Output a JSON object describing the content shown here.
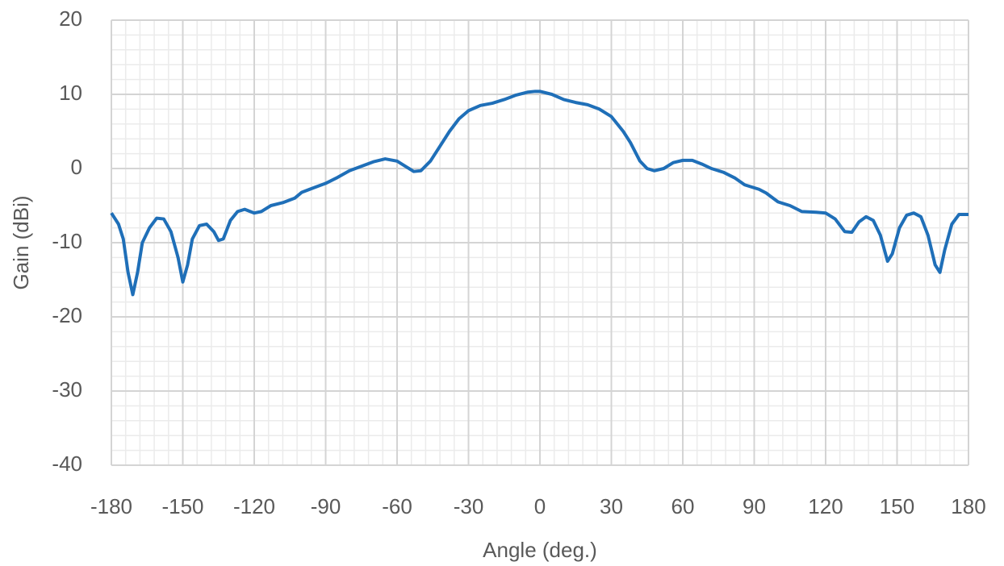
{
  "chart_data": {
    "type": "line",
    "x_label": "Angle (deg.)",
    "y_label": "Gain (dBi)",
    "xlim": [
      -180,
      180
    ],
    "xticks": [
      -180,
      -150,
      -120,
      -90,
      -60,
      -30,
      0,
      30,
      60,
      90,
      120,
      150,
      180
    ],
    "ylim": [
      -40,
      20
    ],
    "yticks": [
      -40,
      -30,
      -20,
      -10,
      0,
      10,
      20
    ],
    "grid": true,
    "minor_grid": true,
    "series": [
      {
        "name": "Gain",
        "color": "#1f6fb8",
        "x": [
          -180,
          -177,
          -175,
          -173,
          -171,
          -169,
          -167,
          -164,
          -161,
          -158,
          -155,
          -152,
          -150,
          -148,
          -146,
          -143,
          -140,
          -137,
          -135,
          -133,
          -130,
          -127,
          -124,
          -120,
          -117,
          -113,
          -108,
          -103,
          -100,
          -95,
          -90,
          -85,
          -80,
          -75,
          -70,
          -65,
          -60,
          -56,
          -53,
          -50,
          -46,
          -42,
          -38,
          -34,
          -30,
          -25,
          -20,
          -15,
          -10,
          -5,
          -2,
          0,
          5,
          10,
          15,
          20,
          25,
          30,
          35,
          38,
          42,
          45,
          48,
          52,
          56,
          60,
          64,
          68,
          72,
          77,
          82,
          86,
          92,
          95,
          100,
          105,
          110,
          116,
          120,
          124,
          128,
          131,
          134,
          137,
          140,
          143,
          146,
          148,
          151,
          154,
          157,
          160,
          163,
          166,
          168,
          170,
          173,
          176,
          180
        ],
        "values": [
          -6,
          -7.5,
          -9.5,
          -14,
          -17,
          -14,
          -10,
          -8,
          -6.7,
          -6.8,
          -8.5,
          -12,
          -15.3,
          -13,
          -9.5,
          -7.7,
          -7.5,
          -8.5,
          -9.7,
          -9.5,
          -7,
          -5.8,
          -5.5,
          -6,
          -5.8,
          -5,
          -4.6,
          -4,
          -3.2,
          -2.6,
          -2,
          -1.2,
          -0.3,
          0.3,
          0.9,
          1.3,
          1,
          0.2,
          -0.4,
          -0.3,
          1,
          3,
          5,
          6.7,
          7.8,
          8.5,
          8.8,
          9.3,
          9.9,
          10.3,
          10.4,
          10.4,
          10,
          9.3,
          8.9,
          8.6,
          8,
          7,
          5,
          3.5,
          1,
          0,
          -0.3,
          0,
          0.8,
          1.1,
          1.1,
          0.6,
          0,
          -0.5,
          -1.3,
          -2.2,
          -2.8,
          -3.3,
          -4.5,
          -5,
          -5.8,
          -5.9,
          -6,
          -6.8,
          -8.5,
          -8.6,
          -7.2,
          -6.5,
          -7,
          -9,
          -12.5,
          -11.5,
          -8,
          -6.3,
          -6,
          -6.5,
          -9,
          -13,
          -14,
          -11,
          -7.5,
          -6.2,
          -6.2
        ]
      }
    ]
  }
}
